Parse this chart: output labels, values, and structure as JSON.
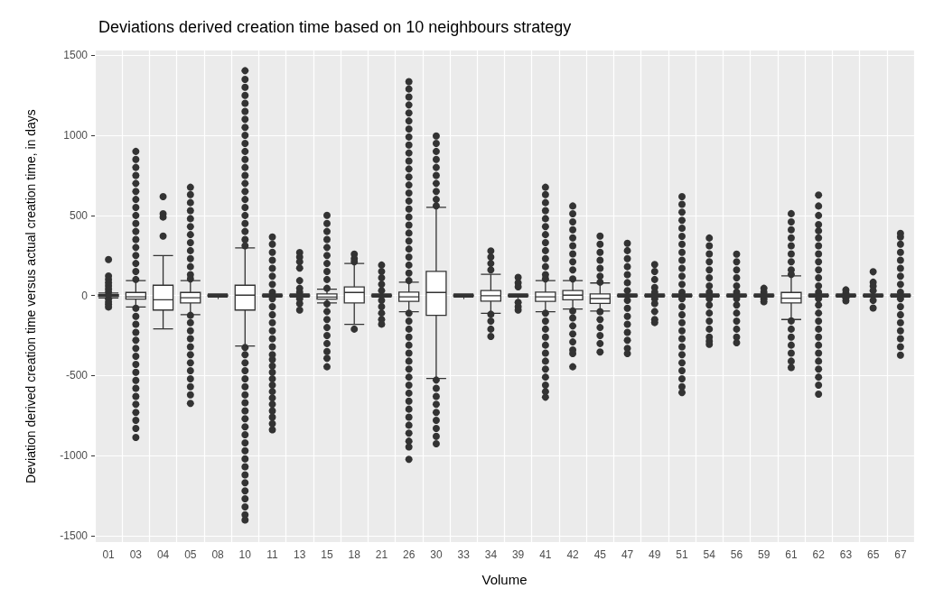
{
  "chart_data": {
    "type": "box",
    "title": "Deviations derived creation time based on 10 neighbours strategy",
    "xlabel": "Volume",
    "ylabel": "Deviation derived creation time versus actual creation time, in days",
    "categories": [
      "01",
      "03",
      "04",
      "05",
      "08",
      "10",
      "11",
      "13",
      "15",
      "18",
      "21",
      "26",
      "30",
      "33",
      "34",
      "39",
      "41",
      "42",
      "45",
      "47",
      "49",
      "51",
      "54",
      "56",
      "59",
      "61",
      "62",
      "63",
      "65",
      "67"
    ],
    "ylim": [
      -1540,
      1530
    ],
    "yticks": [
      -1500,
      -1000,
      -500,
      0,
      500,
      1000,
      1500
    ],
    "grid": true,
    "series": [
      {
        "color": "#333333",
        "boxes": [
          {
            "low": -15,
            "q1": -5,
            "median": 0,
            "q3": 5,
            "high": 15,
            "outliers": [
              225,
              122,
              100,
              80,
              60,
              40,
              20,
              -20,
              -40,
              -55,
              -72
            ]
          },
          {
            "low": -72,
            "q1": -23,
            "median": -8,
            "q3": 19,
            "high": 93,
            "outliers": [
              900,
              850,
              800,
              750,
              700,
              650,
              600,
              550,
              500,
              450,
              400,
              350,
              300,
              250,
              200,
              150,
              100,
              -80,
              -130,
              -180,
              -230,
              -280,
              -330,
              -380,
              -430,
              -480,
              -530,
              -580,
              -630,
              -680,
              -730,
              -780,
              -830,
              -887
            ]
          },
          {
            "low": -208,
            "q1": -91,
            "median": -27,
            "q3": 64,
            "high": 249,
            "outliers": [
              617,
              510,
              490,
              371
            ]
          },
          {
            "low": -120,
            "q1": -47,
            "median": -14,
            "q3": 19,
            "high": 93,
            "outliers": [
              676,
              630,
              580,
              530,
              480,
              430,
              380,
              330,
              280,
              230,
              180,
              130,
              103,
              -124,
              -170,
              -220,
              -270,
              -320,
              -370,
              -420,
              -470,
              -520,
              -570,
              -620,
              -674
            ]
          },
          {
            "low": -10,
            "q1": -3,
            "median": 0,
            "q3": 3,
            "high": 10
          },
          {
            "low": -315,
            "q1": -91,
            "median": 2,
            "q3": 64,
            "high": 297,
            "outliers": [
              1404,
              1350,
              1300,
              1250,
              1200,
              1150,
              1100,
              1050,
              1000,
              950,
              900,
              850,
              800,
              750,
              700,
              650,
              600,
              550,
              500,
              450,
              400,
              350,
              310,
              -325,
              -370,
              -420,
              -470,
              -520,
              -570,
              -620,
              -670,
              -720,
              -770,
              -820,
              -870,
              -920,
              -970,
              -1020,
              -1070,
              -1120,
              -1170,
              -1220,
              -1270,
              -1320,
              -1370,
              -1402
            ]
          },
          {
            "low": -10,
            "q1": -3,
            "median": 0,
            "q3": 3,
            "high": 10,
            "outliers": [
              365,
              320,
              270,
              220,
              170,
              120,
              70,
              20,
              -20,
              -70,
              -120,
              -170,
              -220,
              -270,
              -320,
              -370,
              -400,
              -440,
              -480,
              -520,
              -560,
              -600,
              -640,
              -680,
              -720,
              -760,
              -800,
              -839
            ]
          },
          {
            "low": -10,
            "q1": -3,
            "median": 0,
            "q3": 3,
            "high": 10,
            "outliers": [
              268,
              240,
              210,
              171,
              93,
              45,
              20,
              -20,
              -50,
              -91
            ]
          },
          {
            "low": -47,
            "q1": -23,
            "median": -10,
            "q3": 10,
            "high": 39,
            "outliers": [
              501,
              450,
              400,
              350,
              300,
              250,
              200,
              150,
              100,
              45,
              -52,
              -100,
              -150,
              -200,
              -250,
              -300,
              -350,
              -392,
              -445
            ]
          },
          {
            "low": -180,
            "q1": -47,
            "median": 19,
            "q3": 54,
            "high": 200,
            "outliers": [
              258,
              230,
              210,
              -210
            ]
          },
          {
            "low": -10,
            "q1": -3,
            "median": 0,
            "q3": 3,
            "high": 10,
            "outliers": [
              190,
              150,
              110,
              70,
              30,
              -30,
              -70,
              -110,
              -150,
              -179
            ]
          },
          {
            "low": -101,
            "q1": -37,
            "median": -8,
            "q3": 21,
            "high": 83,
            "outliers": [
              1336,
              1290,
              1240,
              1190,
              1140,
              1090,
              1040,
              990,
              940,
              890,
              840,
              790,
              740,
              690,
              640,
              590,
              540,
              490,
              440,
              390,
              340,
              290,
              240,
              190,
              140,
              93,
              -111,
              -160,
              -210,
              -260,
              -310,
              -360,
              -410,
              -460,
              -510,
              -560,
              -610,
              -660,
              -710,
              -760,
              -810,
              -860,
              -910,
              -946,
              -1023
            ]
          },
          {
            "low": -518,
            "q1": -124,
            "median": 19,
            "q3": 151,
            "high": 550,
            "outliers": [
              996,
              950,
              900,
              850,
              800,
              750,
              700,
              650,
              600,
              560,
              -528,
              -580,
              -630,
              -680,
              -730,
              -780,
              -830,
              -880,
              -926
            ]
          },
          {
            "low": -10,
            "q1": -3,
            "median": 0,
            "q3": 3,
            "high": 10
          },
          {
            "low": -111,
            "q1": -35,
            "median": -2,
            "q3": 31,
            "high": 132,
            "outliers": [
              278,
              240,
              200,
              160,
              -117,
              -160,
              -210,
              -256
            ]
          },
          {
            "low": -10,
            "q1": -3,
            "median": 0,
            "q3": 3,
            "high": 10,
            "outliers": [
              113,
              80,
              54,
              -43,
              -70,
              -91
            ]
          },
          {
            "low": -101,
            "q1": -37,
            "median": -8,
            "q3": 21,
            "high": 93,
            "outliers": [
              676,
              630,
              580,
              530,
              480,
              430,
              380,
              330,
              280,
              230,
              180,
              130,
              103,
              -111,
              -160,
              -210,
              -260,
              -310,
              -360,
              -410,
              -460,
              -510,
              -560,
              -600,
              -635
            ]
          },
          {
            "low": -85,
            "q1": -27,
            "median": 2,
            "q3": 31,
            "high": 93,
            "outliers": [
              559,
              510,
              460,
              410,
              360,
              310,
              260,
              210,
              160,
              103,
              -97,
              -140,
              -190,
              -240,
              -290,
              -340,
              -363,
              -445
            ]
          },
          {
            "low": -97,
            "q1": -49,
            "median": -19,
            "q3": 10,
            "high": 78,
            "outliers": [
              371,
              320,
              270,
              220,
              170,
              120,
              83,
              -101,
              -150,
              -200,
              -250,
              -300,
              -353
            ]
          },
          {
            "low": -10,
            "q1": -3,
            "median": 0,
            "q3": 3,
            "high": 10,
            "outliers": [
              326,
              280,
              230,
              180,
              130,
              80,
              30,
              -30,
              -80,
              -130,
              -180,
              -230,
              -280,
              -330,
              -363
            ]
          },
          {
            "low": -10,
            "q1": -3,
            "median": 0,
            "q3": 3,
            "high": 10,
            "outliers": [
              194,
              150,
              100,
              50,
              20,
              -20,
              -50,
              -100,
              -150,
              -169
            ]
          },
          {
            "low": -10,
            "q1": -3,
            "median": 0,
            "q3": 3,
            "high": 10,
            "outliers": [
              617,
              570,
              520,
              470,
              420,
              370,
              320,
              270,
              220,
              170,
              120,
              70,
              20,
              -20,
              -70,
              -120,
              -170,
              -220,
              -270,
              -320,
              -370,
              -420,
              -470,
              -520,
              -570,
              -606
            ]
          },
          {
            "low": -10,
            "q1": -3,
            "median": 0,
            "q3": 3,
            "high": 10,
            "outliers": [
              359,
              310,
              260,
              210,
              160,
              110,
              60,
              20,
              -20,
              -60,
              -110,
              -160,
              -210,
              -260,
              -285,
              -305
            ]
          },
          {
            "low": -10,
            "q1": -3,
            "median": 0,
            "q3": 3,
            "high": 10,
            "outliers": [
              258,
              210,
              160,
              110,
              60,
              20,
              -20,
              -60,
              -110,
              -160,
              -210,
              -260,
              -295
            ]
          },
          {
            "low": -10,
            "q1": -3,
            "median": 0,
            "q3": 3,
            "high": 10,
            "outliers": [
              45,
              20,
              -20,
              -39
            ]
          },
          {
            "low": -150,
            "q1": -47,
            "median": -17,
            "q3": 19,
            "high": 122,
            "outliers": [
              511,
              460,
              410,
              360,
              310,
              260,
              210,
              160,
              132,
              -159,
              -210,
              -260,
              -310,
              -360,
              -410,
              -450
            ]
          },
          {
            "low": -10,
            "q1": -3,
            "median": 0,
            "q3": 3,
            "high": 10,
            "outliers": [
              627,
              559,
              500,
              443,
              404,
              360,
              310,
              260,
              210,
              160,
              110,
              60,
              20,
              -20,
              -60,
              -110,
              -160,
              -210,
              -260,
              -310,
              -360,
              -410,
              -460,
              -510,
              -560,
              -616
            ]
          },
          {
            "low": -10,
            "q1": -3,
            "median": 0,
            "q3": 3,
            "high": 10,
            "outliers": [
              35,
              15,
              -15,
              -33
            ]
          },
          {
            "low": -10,
            "q1": -3,
            "median": 0,
            "q3": 3,
            "high": 10,
            "outliers": [
              148,
              83,
              58,
              30,
              -30,
              -78
            ]
          },
          {
            "low": -10,
            "q1": -3,
            "median": 0,
            "q3": 3,
            "high": 10,
            "outliers": [
              388,
              365,
              320,
              270,
              220,
              170,
              120,
              70,
              20,
              -20,
              -70,
              -120,
              -170,
              -220,
              -270,
              -320,
              -373
            ]
          }
        ]
      }
    ]
  }
}
